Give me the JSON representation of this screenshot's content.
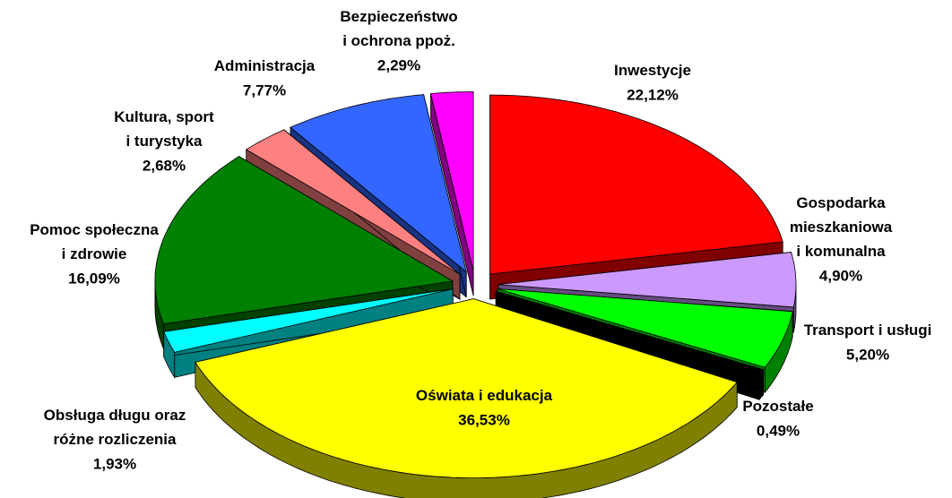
{
  "chart_data": {
    "type": "pie3d",
    "categories": [
      "Inwestycje",
      "Gospodarka\nmieszkaniowa\ni komunalna",
      "Transport i usługi",
      "Pozostałe",
      "Oświata i edukacja",
      "Obsługa długu oraz\nróżne rozliczenia",
      "Pomoc społeczna\ni zdrowie",
      "Kultura, sport\ni turystyka",
      "Administracja",
      "Bezpieczeństwo\ni ochrona ppoż."
    ],
    "values": [
      22.12,
      4.9,
      5.2,
      0.49,
      36.53,
      1.93,
      16.09,
      2.68,
      7.77,
      2.29
    ],
    "value_labels": [
      "22,12%",
      "4,90%",
      "5,20%",
      "0,49%",
      "36,53%",
      "1,93%",
      "16,09%",
      "2,68%",
      "7,77%",
      "2,29%"
    ],
    "colors": [
      "#ff0000",
      "#cc99ff",
      "#00ff00",
      "#000000",
      "#ffff00",
      "#00ffff",
      "#008000",
      "#ff8080",
      "#3366ff",
      "#ff00ff"
    ]
  }
}
